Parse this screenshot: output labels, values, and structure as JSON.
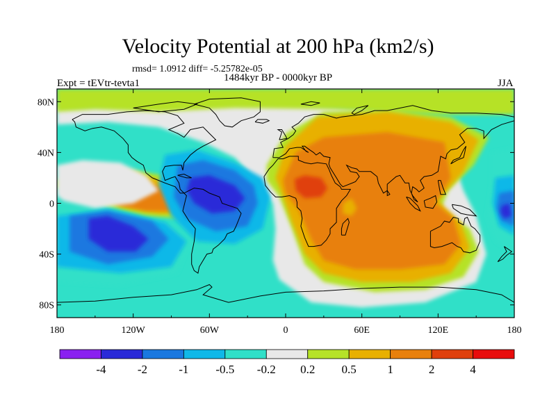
{
  "title": "Velocity Potential at 200 hPa (km2/s)",
  "stats": "rmsd= 1.0912 diff= -5.25782e-05",
  "period": "1484kyr BP - 0000kyr BP",
  "experiment": "Expt = tEVtr-tevta1",
  "season": "JJA",
  "map": {
    "projection": "cylindrical-equidistant",
    "lon_range": [
      -180,
      180
    ],
    "lat_range": [
      -90,
      90
    ],
    "lon_ticks": [
      "180",
      "120W",
      "60W",
      "0",
      "60E",
      "120E",
      "180"
    ],
    "lat_ticks": [
      "80N",
      "40N",
      "0",
      "40S",
      "80S"
    ]
  },
  "colorbar": {
    "labels": [
      "-4",
      "-2",
      "-1",
      "-0.5",
      "-0.2",
      "0.2",
      "0.5",
      "1",
      "2",
      "4"
    ],
    "colors": [
      "#8a20f0",
      "#2a2ad8",
      "#1a78e0",
      "#10b8e8",
      "#30e0c8",
      "#e8e8e8",
      "#b6e228",
      "#e8b000",
      "#e8800c",
      "#e0400c",
      "#e80c0c"
    ]
  },
  "field_colors": {
    "neutral": "#e8e8e8",
    "weak_pos": "#b6e228",
    "mod_pos": "#e8b000",
    "pos": "#e8800c",
    "strong_pos": "#e0400c",
    "weak_neg": "#30e0c8",
    "mod_neg": "#10b8e8",
    "neg": "#1a78e0",
    "strong_neg": "#2a2ad8"
  }
}
